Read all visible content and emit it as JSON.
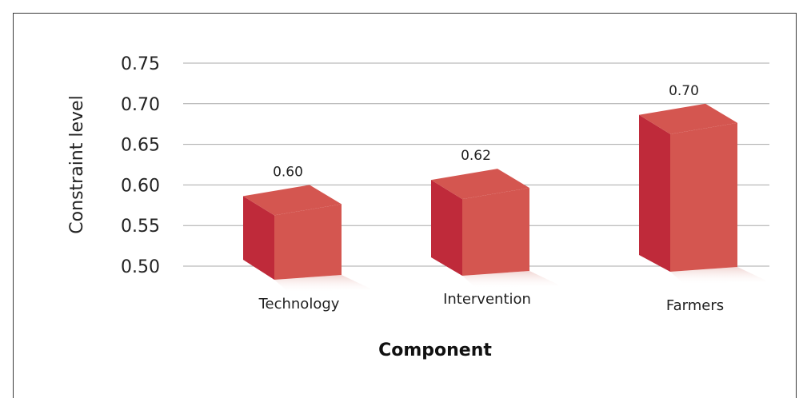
{
  "chart_data": {
    "type": "bar",
    "categories": [
      "Technology",
      "Intervention",
      "Farmers"
    ],
    "values": [
      0.6,
      0.62,
      0.7
    ],
    "value_labels": [
      "0.60",
      "0.62",
      "0.70"
    ],
    "title": "",
    "xlabel": "Component",
    "ylabel": "Constraint level",
    "ylim": [
      0.5,
      0.75
    ],
    "yticks": [
      "0.50",
      "0.55",
      "0.60",
      "0.65",
      "0.70",
      "0.75"
    ],
    "grid": true,
    "style": "3d-bar",
    "colors": {
      "front": "#d45650",
      "side": "#bf2a3a",
      "top": "#d45650"
    }
  }
}
